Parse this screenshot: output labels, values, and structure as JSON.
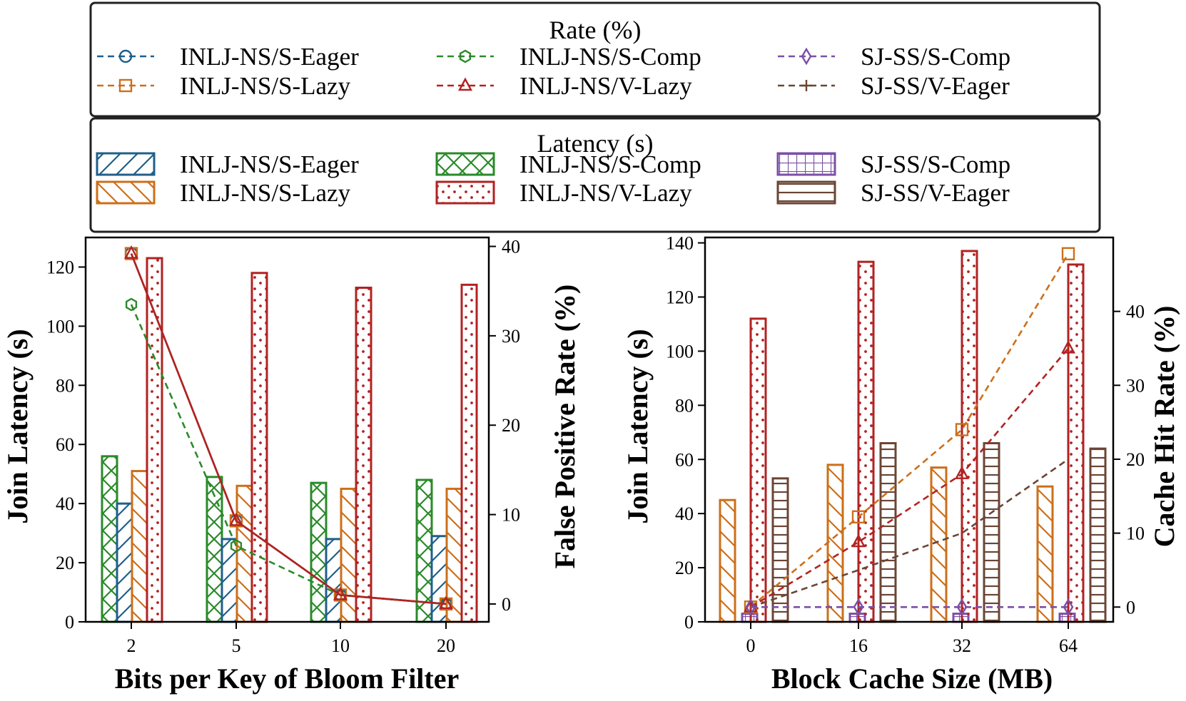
{
  "legends": {
    "rate": {
      "title": "Rate (%)",
      "entries": [
        {
          "label": "INLJ-NS/S-Eager",
          "color": "#1f5f8b",
          "marker": "circle"
        },
        {
          "label": "INLJ-NS/S-Lazy",
          "color": "#cc6f1a",
          "marker": "square"
        },
        {
          "label": "INLJ-NS/S-Comp",
          "color": "#2a8a2a",
          "marker": "hexagon"
        },
        {
          "label": "INLJ-NS/V-Lazy",
          "color": "#b22222",
          "marker": "triangle"
        },
        {
          "label": "SJ-SS/S-Comp",
          "color": "#7b4fa6",
          "marker": "diamond"
        },
        {
          "label": "SJ-SS/V-Eager",
          "color": "#6b4535",
          "marker": "plus"
        }
      ]
    },
    "latency": {
      "title": "Latency (s)",
      "entries": [
        {
          "label": "INLJ-NS/S-Eager",
          "color": "#1f5f8b",
          "hatch": "diag-fwd"
        },
        {
          "label": "INLJ-NS/S-Lazy",
          "color": "#cc6f1a",
          "hatch": "diag-back"
        },
        {
          "label": "INLJ-NS/S-Comp",
          "color": "#2a8a2a",
          "hatch": "cross"
        },
        {
          "label": "INLJ-NS/V-Lazy",
          "color": "#b22222",
          "hatch": "dots"
        },
        {
          "label": "SJ-SS/S-Comp",
          "color": "#7b4fa6",
          "hatch": "grid"
        },
        {
          "label": "SJ-SS/V-Eager",
          "color": "#6b4535",
          "hatch": "horizontal"
        }
      ]
    }
  },
  "chart_data": [
    {
      "type": "bar",
      "xlabel": "Bits per Key of Bloom Filter",
      "ylabel": "Join Latency (s)",
      "y2label": "False Positive Rate (%)",
      "categories": [
        "2",
        "5",
        "10",
        "20"
      ],
      "ylim": [
        0,
        130
      ],
      "yticks": [
        0,
        20,
        40,
        60,
        80,
        100,
        120
      ],
      "y2lim": [
        -2,
        41
      ],
      "y2ticks": [
        0,
        10,
        20,
        30,
        40
      ],
      "bars": [
        {
          "name": "INLJ-NS/S-Comp",
          "values": [
            56,
            49,
            47,
            48
          ]
        },
        {
          "name": "INLJ-NS/S-Eager",
          "values": [
            40,
            28,
            28,
            29
          ]
        },
        {
          "name": "INLJ-NS/S-Lazy",
          "values": [
            51,
            46,
            45,
            45
          ]
        },
        {
          "name": "INLJ-NS/V-Lazy",
          "values": [
            123,
            118,
            113,
            114
          ]
        }
      ],
      "lines": [
        {
          "name": "INLJ-NS/S-Comp",
          "values": [
            33.5,
            6.5,
            1,
            0
          ]
        },
        {
          "name": "INLJ-NS/S-Eager",
          "values": [
            39.2,
            9.3,
            1,
            0
          ]
        },
        {
          "name": "INLJ-NS/S-Lazy",
          "values": [
            39.2,
            9.3,
            1,
            0
          ]
        },
        {
          "name": "INLJ-NS/V-Lazy",
          "values": [
            39.2,
            9.3,
            1,
            0
          ]
        }
      ]
    },
    {
      "type": "bar",
      "xlabel": "Block Cache Size (MB)",
      "ylabel": "Join Latency (s)",
      "y2label": "Cache Hit Rate (%)",
      "categories": [
        "0",
        "16",
        "32",
        "64"
      ],
      "ylim": [
        0,
        142
      ],
      "yticks": [
        0,
        20,
        40,
        60,
        80,
        100,
        120,
        140
      ],
      "y2lim": [
        -2,
        50
      ],
      "y2ticks": [
        0,
        10,
        20,
        30,
        40
      ],
      "bars": [
        {
          "name": "INLJ-NS/S-Lazy",
          "values": [
            45,
            58,
            57,
            50
          ]
        },
        {
          "name": "SJ-SS/S-Comp",
          "values": [
            3,
            3,
            3,
            3
          ]
        },
        {
          "name": "INLJ-NS/V-Lazy",
          "values": [
            112,
            133,
            137,
            132
          ]
        },
        {
          "name": "SJ-SS/V-Eager",
          "values": [
            53,
            66,
            66,
            64
          ]
        }
      ],
      "lines": [
        {
          "name": "INLJ-NS/S-Lazy",
          "values": [
            0,
            12.2,
            24,
            47.8
          ]
        },
        {
          "name": "INLJ-NS/V-Lazy",
          "values": [
            0,
            8.8,
            18,
            35
          ]
        },
        {
          "name": "SJ-SS/V-Eager",
          "values": [
            0,
            5,
            10,
            20
          ]
        },
        {
          "name": "SJ-SS/S-Comp",
          "values": [
            0,
            0,
            0,
            0
          ]
        }
      ]
    }
  ]
}
